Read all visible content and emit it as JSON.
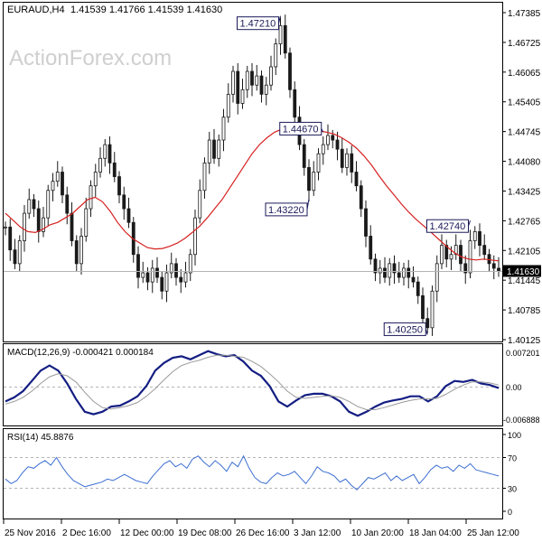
{
  "header": {
    "symbol": "EURAUD,H4",
    "ohlc": "1.41539 1.41766 1.41539 1.41630"
  },
  "watermark": "ActionForex.com",
  "colors": {
    "candle": "#1a1a1a",
    "moving_average": "#d62020",
    "macd": "#141e82",
    "signal": "#9a9a9a",
    "rsi": "#3d6fd1",
    "grid": "#b4b4b4",
    "watermark": "#cfcfcf"
  },
  "chart_data": [
    {
      "type": "candlestick",
      "title": "EURAUD,H4",
      "ylim": [
        1.4012,
        1.4748
      ],
      "y_ticks": [
        "1.47385",
        "1.46725",
        "1.46065",
        "1.45405",
        "1.44745",
        "1.44080",
        "1.43425",
        "1.42765",
        "1.42105",
        "1.41445",
        "1.40785",
        "1.40125"
      ],
      "current_price": "1.41630",
      "current_price_value": 1.4163,
      "close_series": [
        1.426,
        1.421,
        1.418,
        1.423,
        1.429,
        1.432,
        1.43,
        1.425,
        1.428,
        1.434,
        1.436,
        1.438,
        1.433,
        1.429,
        1.423,
        1.418,
        1.424,
        1.43,
        1.435,
        1.438,
        1.441,
        1.444,
        1.44,
        1.437,
        1.433,
        1.43,
        1.427,
        1.42,
        1.415,
        1.416,
        1.414,
        1.417,
        1.415,
        1.412,
        1.416,
        1.418,
        1.415,
        1.414,
        1.416,
        1.42,
        1.428,
        1.434,
        1.44,
        1.445,
        1.441,
        1.445,
        1.45,
        1.455,
        1.46,
        1.453,
        1.456,
        1.46,
        1.457,
        1.459,
        1.455,
        1.457,
        1.461,
        1.466,
        1.47,
        1.464,
        1.456,
        1.45,
        1.444,
        1.439,
        1.434,
        1.438,
        1.442,
        1.444,
        1.446,
        1.445,
        1.443,
        1.439,
        1.442,
        1.438,
        1.435,
        1.43,
        1.424,
        1.419,
        1.416,
        1.417,
        1.415,
        1.418,
        1.416,
        1.415,
        1.417,
        1.415,
        1.414,
        1.411,
        1.406,
        1.404,
        1.412,
        1.418,
        1.422,
        1.419,
        1.42,
        1.422,
        1.418,
        1.416,
        1.423,
        1.425,
        1.422,
        1.42,
        1.418,
        1.417,
        1.4163
      ],
      "ma_series": [
        1.429,
        1.4275,
        1.426,
        1.425,
        1.4248,
        1.4255,
        1.4265,
        1.427,
        1.428,
        1.429,
        1.4305,
        1.432,
        1.4325,
        1.4315,
        1.4295,
        1.427,
        1.425,
        1.4235,
        1.4225,
        1.4215,
        1.4212,
        1.4213,
        1.4218,
        1.4225,
        1.4235,
        1.4248,
        1.4262,
        1.428,
        1.43,
        1.432,
        1.4345,
        1.437,
        1.4395,
        1.442,
        1.444,
        1.4455,
        1.4467,
        1.4474,
        1.448,
        1.4486,
        1.4482,
        1.4475,
        1.447,
        1.4467,
        1.4463,
        1.4455,
        1.4445,
        1.4432,
        1.4415,
        1.4395,
        1.4372,
        1.435,
        1.433,
        1.431,
        1.4292,
        1.4276,
        1.4262,
        1.4248,
        1.4233,
        1.4218,
        1.4205,
        1.4195,
        1.419,
        1.4188,
        1.419,
        1.4188,
        1.4186
      ],
      "annotations": [
        {
          "label": "1.47210",
          "value": 1.4721
        },
        {
          "label": "1.44670",
          "value": 1.4467
        },
        {
          "label": "1.43220",
          "value": 1.4322
        },
        {
          "label": "1.42740",
          "value": 1.4274
        },
        {
          "label": "1.40250",
          "value": 1.4025
        }
      ],
      "x_ticks": [
        "25 Nov 2016",
        "2 Dec 16:00",
        "12 Dec 00:00",
        "19 Dec 08:00",
        "26 Dec 16:00",
        "3 Jan 12:00",
        "10 Jan 20:00",
        "18 Jan 04:00",
        "25 Jan 12:00"
      ],
      "xlabel": "",
      "ylabel": ""
    },
    {
      "type": "line",
      "title": "MACD(12,26,9) -0.000421 0.000184",
      "ylim": [
        -0.0075,
        0.0078
      ],
      "y_ticks": [
        "0.007201",
        "0.00",
        "-0.006888"
      ],
      "series": [
        {
          "name": "MACD",
          "values": [
            -0.003,
            -0.0022,
            -0.001,
            0.001,
            0.003,
            0.004,
            0.003,
            0.0005,
            -0.0025,
            -0.005,
            -0.0055,
            -0.005,
            -0.004,
            -0.0038,
            -0.003,
            -0.002,
            0.0,
            0.003,
            0.0045,
            0.0055,
            0.0058,
            0.0052,
            0.006,
            0.0068,
            0.0062,
            0.0058,
            0.006,
            0.0048,
            0.003,
            0.002,
            0.0,
            -0.003,
            -0.004,
            -0.0028,
            -0.0018,
            -0.0015,
            -0.0015,
            -0.002,
            -0.003,
            -0.005,
            -0.0058,
            -0.005,
            -0.004,
            -0.0032,
            -0.0028,
            -0.0025,
            -0.002,
            -0.002,
            -0.003,
            -0.002,
            0.0,
            0.001,
            0.0008,
            0.0012,
            0.0005,
            0.0002,
            -0.0004
          ]
        },
        {
          "name": "Signal",
          "values": [
            -0.0035,
            -0.003,
            -0.0022,
            -0.001,
            0.0005,
            0.0018,
            0.0024,
            0.002,
            0.0008,
            -0.0012,
            -0.003,
            -0.0042,
            -0.0045,
            -0.0042,
            -0.0038,
            -0.0032,
            -0.002,
            -0.0005,
            0.0012,
            0.0028,
            0.004,
            0.0046,
            0.005,
            0.0056,
            0.006,
            0.006,
            0.0058,
            0.0056,
            0.0048,
            0.0038,
            0.0024,
            0.0008,
            -0.001,
            -0.0022,
            -0.0024,
            -0.0022,
            -0.002,
            -0.0019,
            -0.0022,
            -0.003,
            -0.004,
            -0.0046,
            -0.0046,
            -0.0042,
            -0.0037,
            -0.0032,
            -0.0028,
            -0.0025,
            -0.0025,
            -0.0024,
            -0.0016,
            -0.0006,
            0.0002,
            0.0008,
            0.0008,
            0.0006,
            0.0002
          ]
        }
      ]
    },
    {
      "type": "line",
      "title": "RSI(14) 45.8876",
      "ylim": [
        0,
        100
      ],
      "y_ticks": [
        "100",
        "70",
        "30",
        "0"
      ],
      "y_tick_values": [
        100,
        70,
        30,
        0
      ],
      "levels": [
        70,
        30
      ],
      "series": [
        {
          "name": "RSI",
          "values": [
            42,
            36,
            40,
            50,
            58,
            56,
            62,
            66,
            60,
            70,
            58,
            48,
            40,
            36,
            32,
            34,
            36,
            38,
            42,
            40,
            44,
            48,
            44,
            40,
            38,
            36,
            46,
            54,
            62,
            66,
            58,
            62,
            56,
            68,
            72,
            64,
            58,
            66,
            60,
            52,
            64,
            58,
            72,
            56,
            44,
            38,
            36,
            44,
            50,
            46,
            48,
            52,
            44,
            36,
            46,
            58,
            52,
            50,
            46,
            38,
            42,
            34,
            28,
            36,
            44,
            42,
            46,
            50,
            40,
            46,
            40,
            44,
            48,
            36,
            44,
            54,
            60,
            56,
            58,
            52,
            60,
            56,
            62,
            54,
            52,
            50,
            48,
            46
          ]
        }
      ]
    }
  ]
}
